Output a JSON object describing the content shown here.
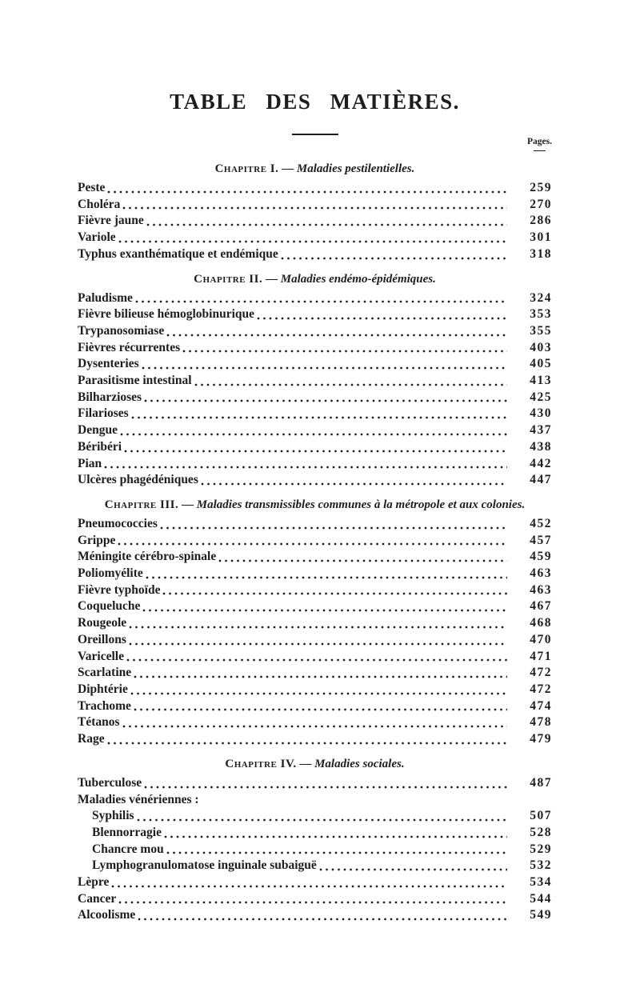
{
  "document": {
    "title": "TABLE DES MATIÈRES.",
    "pages_column_label": "Pages."
  },
  "colors": {
    "ink": "#1d1d1d",
    "paper": "#ffffff"
  },
  "toc": {
    "chapters": [
      {
        "heading": {
          "label": "Chapitre I.",
          "dash": "—",
          "title": "Maladies pestilentielles."
        },
        "items": [
          {
            "label": "Peste",
            "page": "259"
          },
          {
            "label": "Choléra",
            "page": "270"
          },
          {
            "label": "Fièvre jaune",
            "page": "286"
          },
          {
            "label": "Variole",
            "page": "301"
          },
          {
            "label": "Typhus exanthématique et endémique",
            "page": "318"
          }
        ]
      },
      {
        "heading": {
          "label": "Chapitre II.",
          "dash": "—",
          "title": "Maladies endémo-épidémiques."
        },
        "items": [
          {
            "label": "Paludisme",
            "page": "324"
          },
          {
            "label": "Fièvre bilieuse hémoglobinurique",
            "page": "353"
          },
          {
            "label": "Trypanosomiase",
            "page": "355"
          },
          {
            "label": "Fièvres récurrentes",
            "page": "403"
          },
          {
            "label": "Dysenteries",
            "page": "405"
          },
          {
            "label": "Parasitisme intestinal",
            "page": "413"
          },
          {
            "label": "Bilharzioses",
            "page": "425"
          },
          {
            "label": "Filarioses",
            "page": "430"
          },
          {
            "label": "Dengue",
            "page": "437"
          },
          {
            "label": "Béribéri",
            "page": "438"
          },
          {
            "label": "Pian",
            "page": "442"
          },
          {
            "label": "Ulcères phagédéniques",
            "page": "447"
          }
        ]
      },
      {
        "heading": {
          "label": "Chapitre III.",
          "dash": "—",
          "title": "Maladies transmissibles communes à la métropole et aux colonies."
        },
        "items": [
          {
            "label": "Pneumococcies",
            "page": "452"
          },
          {
            "label": "Grippe",
            "page": "457"
          },
          {
            "label": "Méningite cérébro-spinale",
            "page": "459"
          },
          {
            "label": "Poliomyélite",
            "page": "463"
          },
          {
            "label": "Fièvre typhoïde",
            "page": "463"
          },
          {
            "label": "Coqueluche",
            "page": "467"
          },
          {
            "label": "Rougeole",
            "page": "468"
          },
          {
            "label": "Oreillons",
            "page": "470"
          },
          {
            "label": "Varicelle",
            "page": "471"
          },
          {
            "label": "Scarlatine",
            "page": "472"
          },
          {
            "label": "Diphtérie",
            "page": "472"
          },
          {
            "label": "Trachome",
            "page": "474"
          },
          {
            "label": "Tétanos",
            "page": "478"
          },
          {
            "label": "Rage",
            "page": "479"
          }
        ]
      },
      {
        "heading": {
          "label": "Chapitre IV.",
          "dash": "—",
          "title": "Maladies sociales."
        },
        "items": [
          {
            "label": "Tuberculose",
            "page": "487"
          },
          {
            "label": "Maladies vénériennes :",
            "page": null,
            "leader": false
          },
          {
            "label": "Syphilis",
            "page": "507",
            "indent": true
          },
          {
            "label": "Blennorragie",
            "page": "528",
            "indent": true
          },
          {
            "label": "Chancre mou",
            "page": "529",
            "indent": true
          },
          {
            "label": "Lymphogranulomatose inguinale subaiguë",
            "page": "532",
            "indent": true
          },
          {
            "label": "Lèpre",
            "page": "534"
          },
          {
            "label": "Cancer",
            "page": "544"
          },
          {
            "label": "Alcoolisme",
            "page": "549"
          }
        ]
      }
    ]
  }
}
